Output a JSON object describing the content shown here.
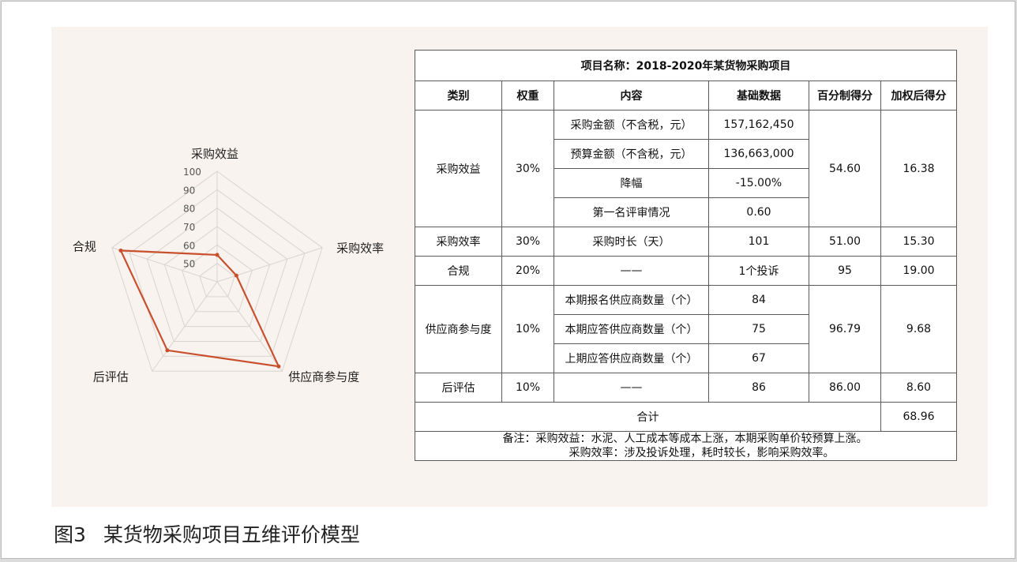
{
  "chart_data": {
    "type": "radar",
    "axes": [
      "采购效益",
      "采购效率",
      "供应商参与度",
      "后评估",
      "合规"
    ],
    "values": [
      54.6,
      51.0,
      96.79,
      86.0,
      95
    ],
    "ticks": [
      50,
      60,
      70,
      80,
      90,
      100
    ],
    "range": [
      40,
      100
    ],
    "series_color": "#c8502d"
  },
  "table": {
    "title": "项目名称：2018-2020年某货物采购项目",
    "headers": [
      "类别",
      "权重",
      "内容",
      "基础数据",
      "百分制得分",
      "加权后得分"
    ],
    "groups": [
      {
        "category": "采购效益",
        "weight": "30%",
        "rows": [
          {
            "content": "采购金额（不含税，元）",
            "data": "157,162,450"
          },
          {
            "content": "预算金额（不含税，元）",
            "data": "136,663,000"
          },
          {
            "content": "降幅",
            "data": "-15.00%"
          },
          {
            "content": "第一名评审情况",
            "data": "0.60"
          }
        ],
        "score": "54.60",
        "weighted": "16.38"
      },
      {
        "category": "采购效率",
        "weight": "30%",
        "rows": [
          {
            "content": "采购时长（天）",
            "data": "101"
          }
        ],
        "score": "51.00",
        "weighted": "15.30"
      },
      {
        "category": "合规",
        "weight": "20%",
        "rows": [
          {
            "content": "——",
            "data": "1个投诉"
          }
        ],
        "score": "95",
        "weighted": "19.00"
      },
      {
        "category": "供应商参与度",
        "weight": "10%",
        "rows": [
          {
            "content": "本期报名供应商数量（个）",
            "data": "84"
          },
          {
            "content": "本期应答供应商数量（个）",
            "data": "75"
          },
          {
            "content": "上期应答供应商数量（个）",
            "data": "67"
          }
        ],
        "score": "96.79",
        "weighted": "9.68"
      },
      {
        "category": "后评估",
        "weight": "10%",
        "rows": [
          {
            "content": "——",
            "data": "86"
          }
        ],
        "score": "86.00",
        "weighted": "8.60"
      }
    ],
    "total_label": "合计",
    "total_value": "68.96",
    "notes": [
      "备注：采购效益：水泥、人工成本等成本上涨，本期采购单价较预算上涨。",
      "采购效率：涉及投诉处理，耗时较长，影响采购效率。"
    ]
  },
  "caption": {
    "number": "图3",
    "text": "某货物采购项目五维评价模型"
  }
}
